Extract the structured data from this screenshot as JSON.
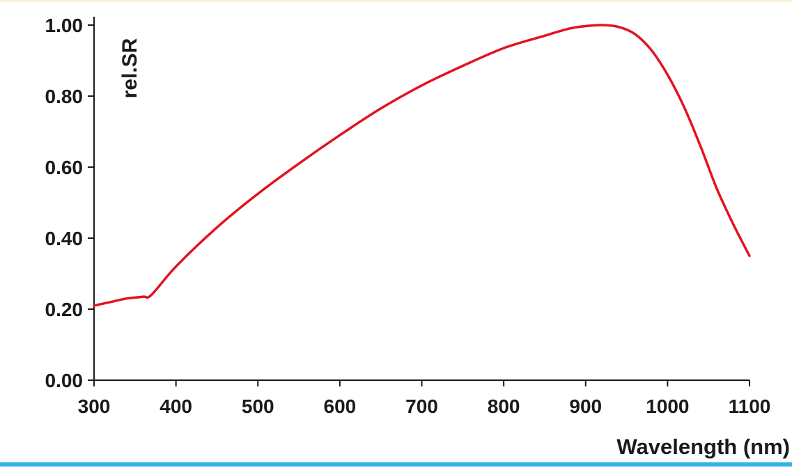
{
  "chart_data": {
    "type": "line",
    "title": "",
    "xlabel": "Wavelength (nm)",
    "ylabel": "rel.SR",
    "xlim": [
      300,
      1100
    ],
    "ylim": [
      0,
      1
    ],
    "x_ticks": [
      {
        "value": 300,
        "label": "300"
      },
      {
        "value": 400,
        "label": "400"
      },
      {
        "value": 500,
        "label": "500"
      },
      {
        "value": 600,
        "label": "600"
      },
      {
        "value": 700,
        "label": "700"
      },
      {
        "value": 800,
        "label": "800"
      },
      {
        "value": 900,
        "label": "900"
      },
      {
        "value": 1000,
        "label": "1000"
      },
      {
        "value": 1100,
        "label": "1100"
      }
    ],
    "y_ticks": [
      {
        "value": 0.0,
        "label": "0.00"
      },
      {
        "value": 0.2,
        "label": "0.20"
      },
      {
        "value": 0.4,
        "label": "0.40"
      },
      {
        "value": 0.6,
        "label": "0.60"
      },
      {
        "value": 0.8,
        "label": "0.80"
      },
      {
        "value": 1.0,
        "label": "1.00"
      }
    ],
    "grid": false,
    "series": [
      {
        "color": "#e3121f",
        "x": [
          300,
          320,
          340,
          360,
          370,
          400,
          450,
          500,
          550,
          600,
          650,
          700,
          750,
          800,
          850,
          880,
          900,
          920,
          940,
          960,
          980,
          1000,
          1020,
          1040,
          1060,
          1080,
          1100
        ],
        "y": [
          0.21,
          0.22,
          0.23,
          0.235,
          0.24,
          0.32,
          0.43,
          0.525,
          0.61,
          0.69,
          0.765,
          0.83,
          0.885,
          0.935,
          0.97,
          0.99,
          0.997,
          1.0,
          0.995,
          0.975,
          0.93,
          0.86,
          0.77,
          0.66,
          0.54,
          0.44,
          0.35
        ]
      }
    ]
  }
}
